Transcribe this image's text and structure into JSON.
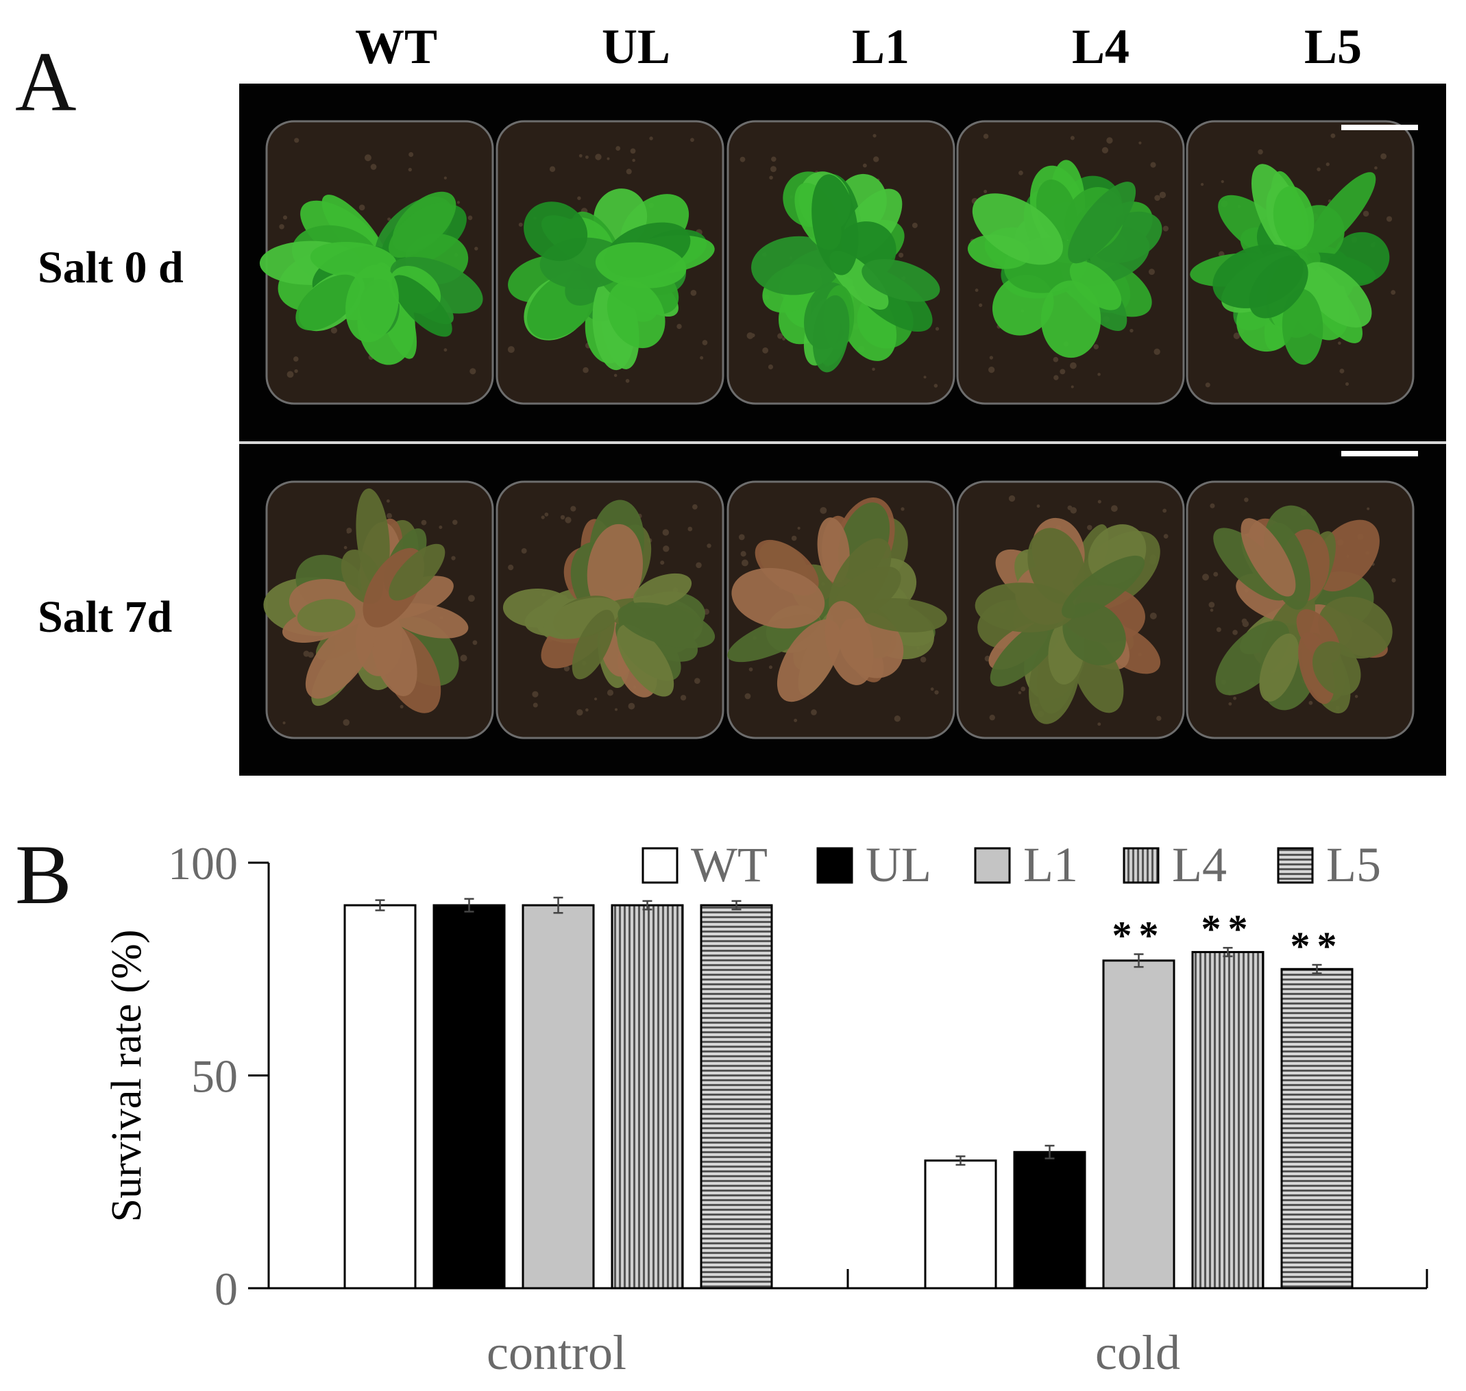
{
  "panel_a": {
    "letter": "A",
    "columns": [
      "WT",
      "UL",
      "L1",
      "L4",
      "L5"
    ],
    "rows": [
      "Salt 0 d",
      "Salt 7d"
    ]
  },
  "panel_b": {
    "letter": "B"
  },
  "chart_data": {
    "type": "bar",
    "categories": [
      "control",
      "cold"
    ],
    "series": [
      {
        "name": "WT",
        "values": [
          90,
          30
        ],
        "errors": [
          1.2,
          1.0
        ]
      },
      {
        "name": "UL",
        "values": [
          90,
          32
        ],
        "errors": [
          1.5,
          1.5
        ]
      },
      {
        "name": "L1",
        "values": [
          90,
          77
        ],
        "errors": [
          1.8,
          1.5
        ]
      },
      {
        "name": "L4",
        "values": [
          90,
          79
        ],
        "errors": [
          1.0,
          1.0
        ]
      },
      {
        "name": "L5",
        "values": [
          90,
          75
        ],
        "errors": [
          1.0,
          1.0
        ]
      }
    ],
    "annotations": [
      {
        "category": "cold",
        "series": "L1",
        "text": "**"
      },
      {
        "category": "cold",
        "series": "L4",
        "text": "**"
      },
      {
        "category": "cold",
        "series": "L5",
        "text": "**"
      }
    ],
    "ylabel": "Survival rate (%)",
    "xlabel": "",
    "ylim": [
      0,
      100
    ],
    "yticks": [
      0,
      50,
      100
    ],
    "legend": "top-right",
    "grid": false,
    "fills": [
      "white",
      "black",
      "light-gray",
      "vertical-stripes",
      "horizontal-stripes"
    ]
  }
}
